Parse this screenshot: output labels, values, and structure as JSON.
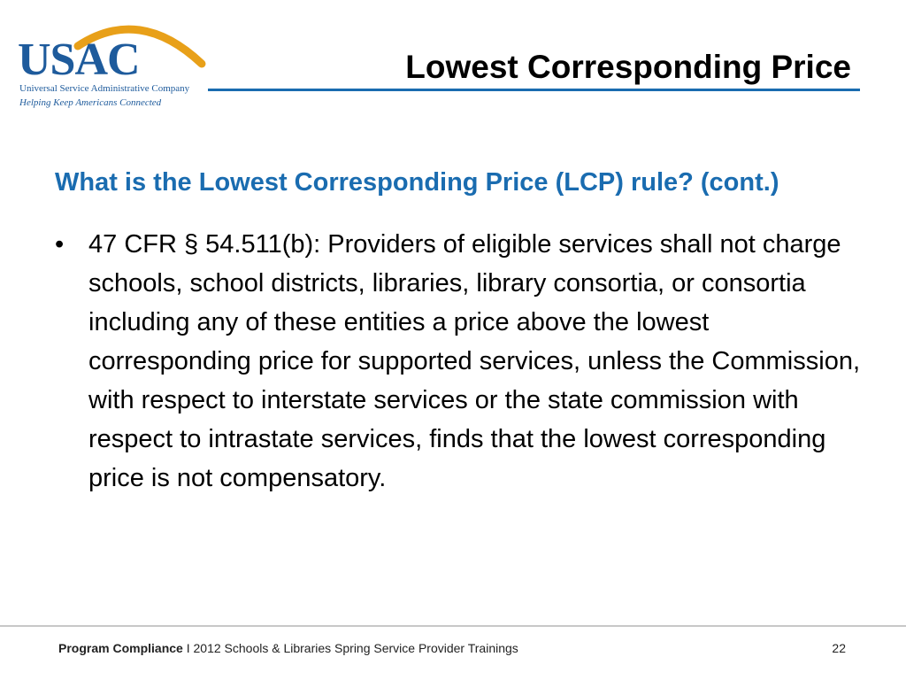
{
  "logo": {
    "mark": "USAC",
    "company": "Universal Service Administrative Company",
    "tagline": "Helping Keep Americans Connected"
  },
  "slide": {
    "title": "Lowest Corresponding Price",
    "subheading": "What is the Lowest Corresponding Price (LCP) rule? (cont.)",
    "bullets": [
      "47 CFR § 54.511(b): Providers of eligible services shall not charge schools, school districts, libraries, library consortia, or consortia including any of these entities a price above the lowest corresponding price for supported services, unless the Commission, with respect to interstate services or the state commission with respect to intrastate services, finds that the lowest corresponding price is not compensatory."
    ]
  },
  "footer": {
    "section": "Program Compliance",
    "separator": "I",
    "event": "2012 Schools & Libraries Spring Service Provider Trainings",
    "page_number": "22"
  },
  "colors": {
    "brand_blue": "#1e5b9c",
    "accent_gold": "#e8a019",
    "heading_blue": "#1a6cb0"
  }
}
